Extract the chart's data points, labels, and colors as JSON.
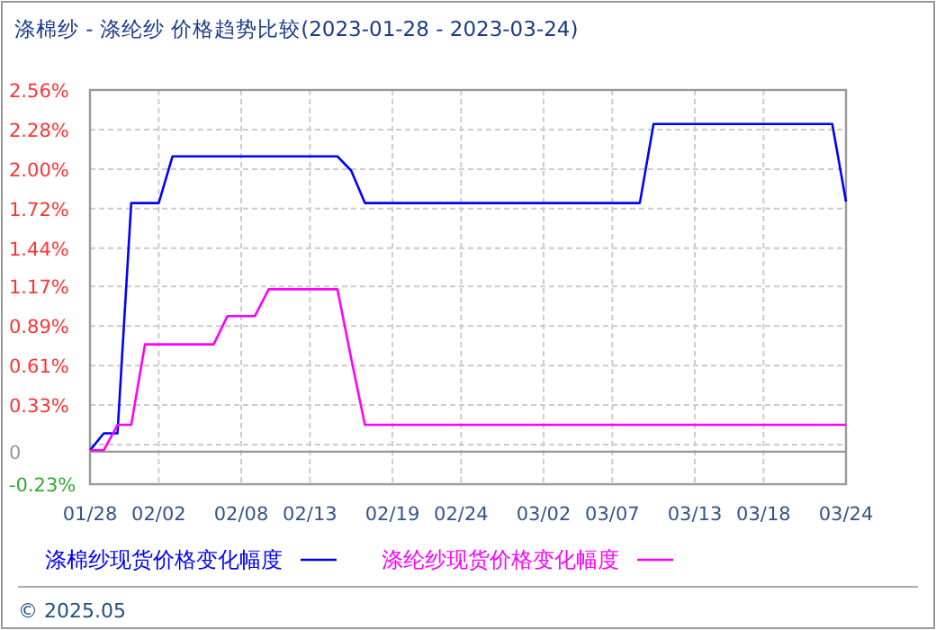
{
  "chart_data": {
    "type": "line",
    "title": "涤棉纱 - 涤纶纱 价格趋势比较(2023-01-28 - 2023-03-24)",
    "xlim": [
      "2023-01-28",
      "2023-03-24"
    ],
    "xticks": [
      {
        "value": "2023-01-28",
        "label": "01/28"
      },
      {
        "value": "2023-02-02",
        "label": "02/02"
      },
      {
        "value": "2023-02-08",
        "label": "02/08"
      },
      {
        "value": "2023-02-13",
        "label": "02/13"
      },
      {
        "value": "2023-02-19",
        "label": "02/19"
      },
      {
        "value": "2023-02-24",
        "label": "02/24"
      },
      {
        "value": "2023-03-02",
        "label": "03/02"
      },
      {
        "value": "2023-03-07",
        "label": "03/07"
      },
      {
        "value": "2023-03-13",
        "label": "03/13"
      },
      {
        "value": "2023-03-18",
        "label": "03/18"
      },
      {
        "value": "2023-03-24",
        "label": "03/24"
      }
    ],
    "ylim": [
      -0.23,
      2.56
    ],
    "yticks": [
      {
        "value": -0.23,
        "label": "-0.23%"
      },
      {
        "value": 0,
        "label": "0"
      },
      {
        "value": 0.05,
        "label": null
      },
      {
        "value": 0.33,
        "label": "0.33%"
      },
      {
        "value": 0.61,
        "label": "0.61%"
      },
      {
        "value": 0.89,
        "label": "0.89%"
      },
      {
        "value": 1.17,
        "label": "1.17%"
      },
      {
        "value": 1.44,
        "label": "1.44%"
      },
      {
        "value": 1.72,
        "label": "1.72%"
      },
      {
        "value": 2.0,
        "label": "2.00%"
      },
      {
        "value": 2.28,
        "label": "2.28%"
      },
      {
        "value": 2.56,
        "label": "2.56%"
      }
    ],
    "grid": true,
    "legend": "bottom",
    "marker": "none",
    "line_style": "solid",
    "ref_lines": [
      {
        "axis": "y",
        "value": 0,
        "color": "#999999"
      }
    ],
    "series": [
      {
        "name": "涤棉纱现货价格变化幅度",
        "color": "#0000ff",
        "x": [
          "2023-01-28",
          "2023-01-29",
          "2023-01-30",
          "2023-01-31",
          "2023-02-02",
          "2023-02-03",
          "2023-02-15",
          "2023-02-16",
          "2023-02-17",
          "2023-03-09",
          "2023-03-10",
          "2023-03-23",
          "2023-03-24"
        ],
        "values": [
          0.01,
          0.13,
          0.13,
          1.76,
          1.76,
          2.09,
          2.09,
          1.99,
          1.76,
          1.76,
          2.32,
          2.32,
          1.77
        ]
      },
      {
        "name": "涤纶纱现货价格变化幅度",
        "color": "#ff00ff",
        "x": [
          "2023-01-28",
          "2023-01-29",
          "2023-01-30",
          "2023-01-31",
          "2023-02-01",
          "2023-02-06",
          "2023-02-07",
          "2023-02-09",
          "2023-02-10",
          "2023-02-15",
          "2023-02-16",
          "2023-02-17",
          "2023-03-24"
        ],
        "values": [
          0.01,
          0.01,
          0.19,
          0.19,
          0.76,
          0.76,
          0.96,
          0.96,
          1.15,
          1.15,
          0.66,
          0.19,
          0.19
        ]
      }
    ],
    "annotations": [
      "© 2025.05"
    ]
  }
}
